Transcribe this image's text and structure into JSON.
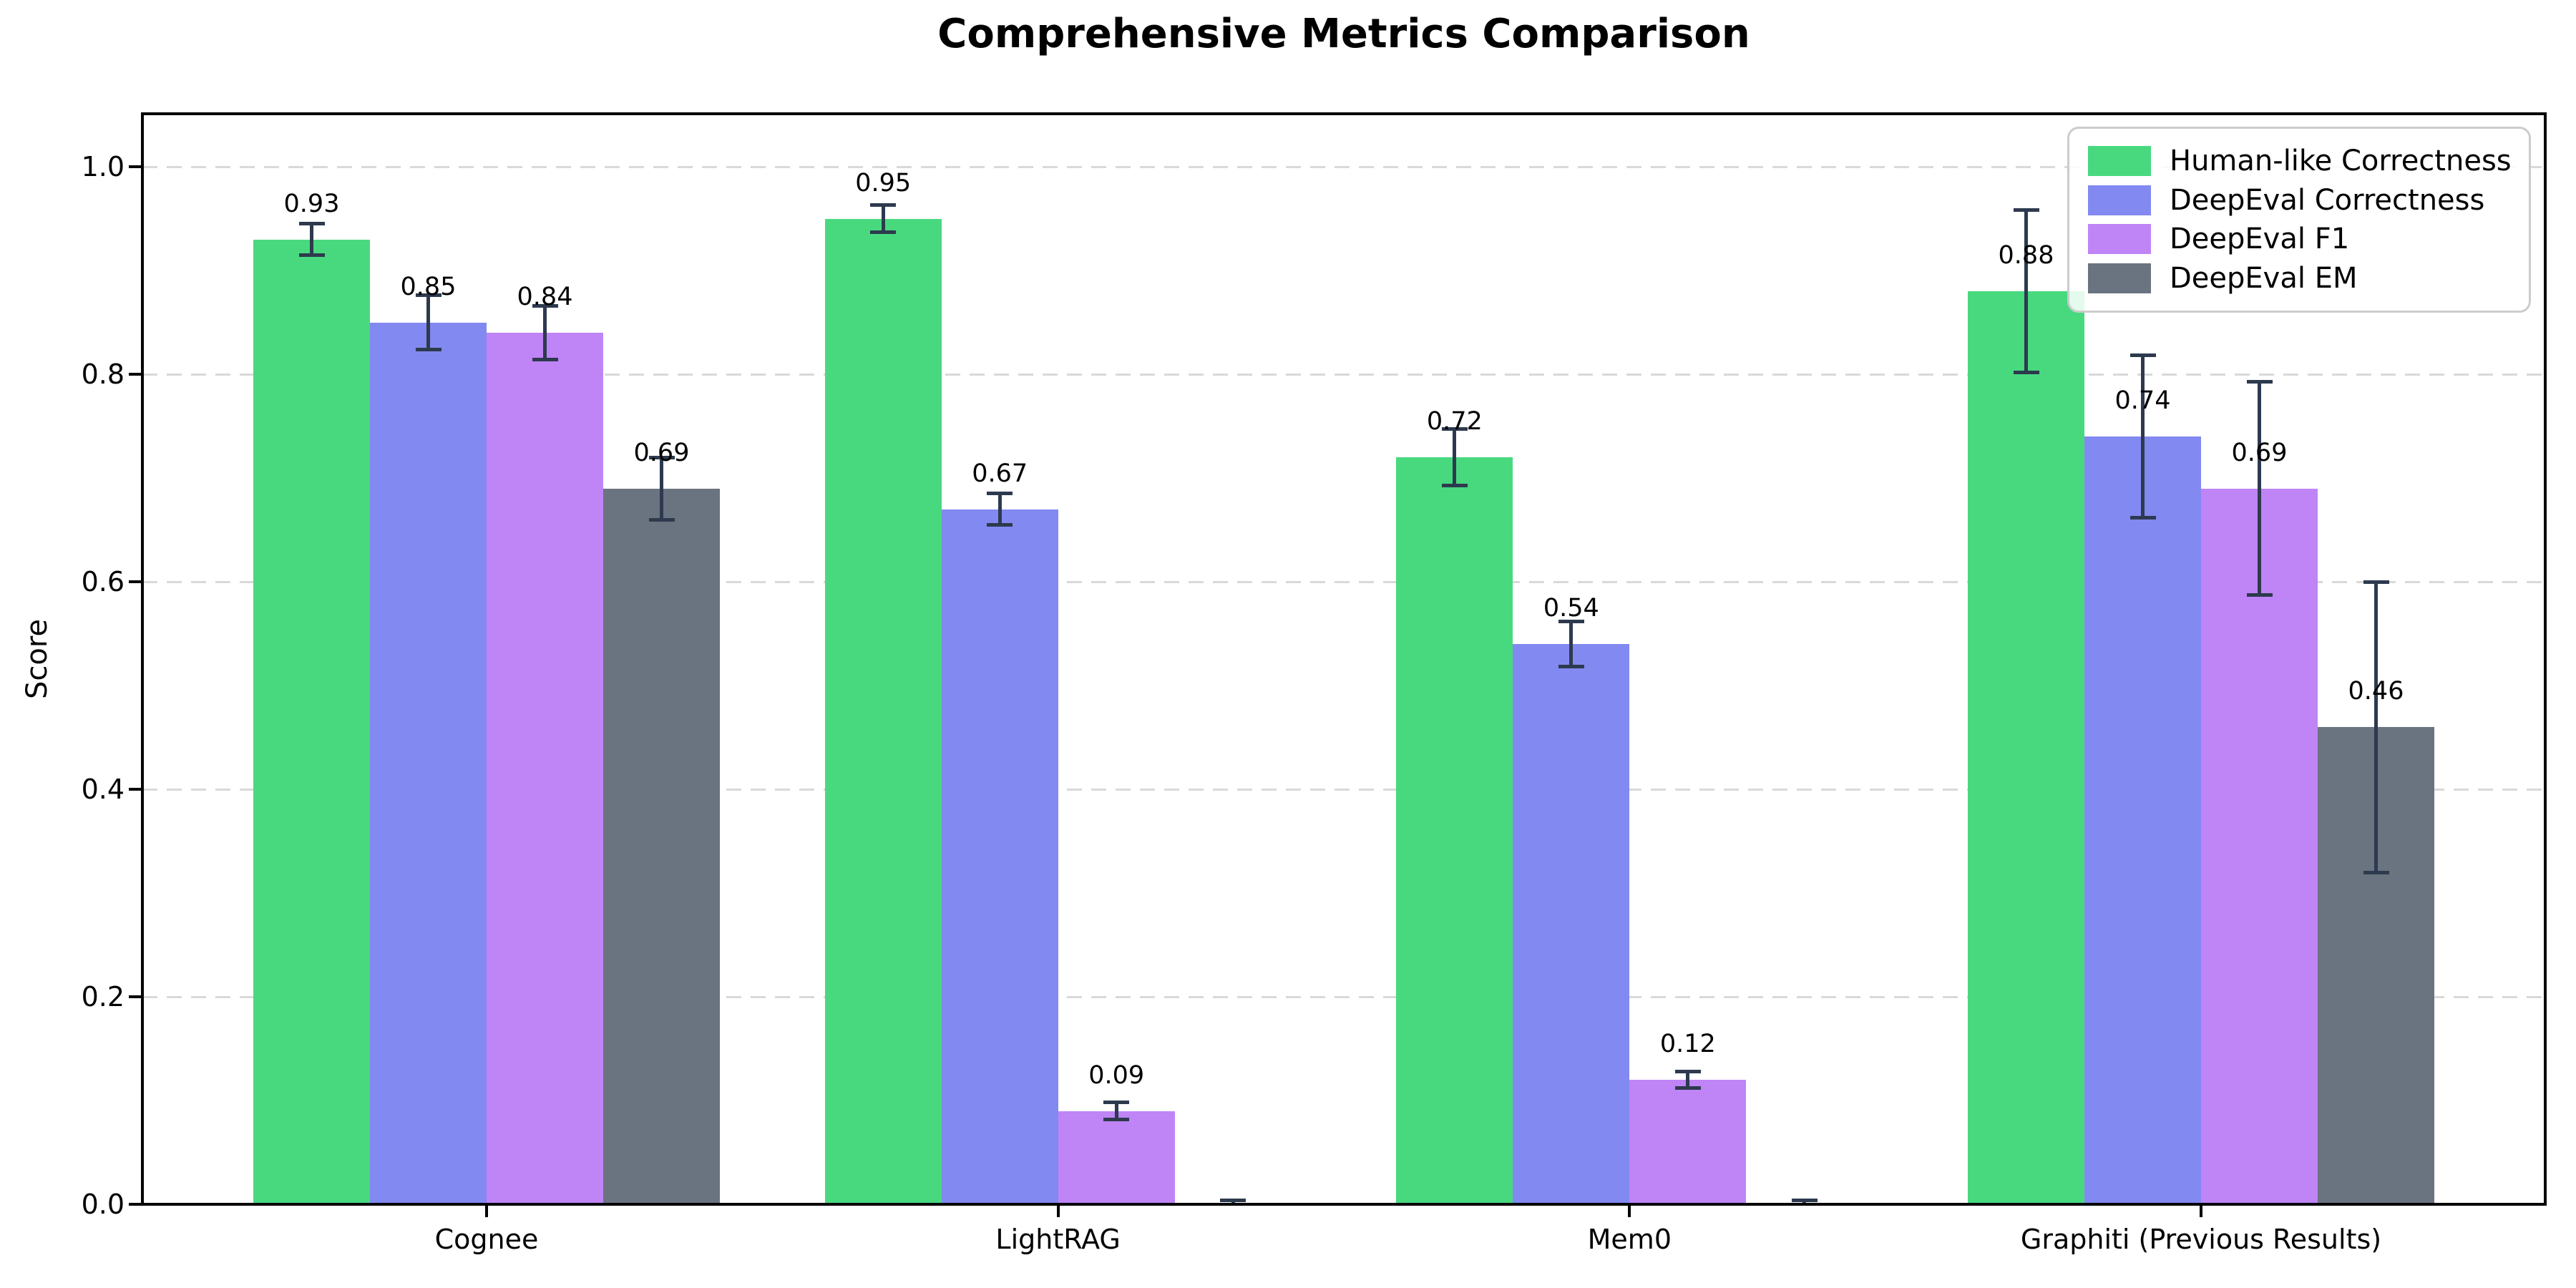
{
  "chart_data": {
    "type": "bar",
    "title": "Comprehensive Metrics Comparison",
    "ylabel": "Score",
    "xlabel": "",
    "ylim": [
      0,
      1.05
    ],
    "yticks": [
      0.0,
      0.2,
      0.4,
      0.6,
      0.8,
      1.0
    ],
    "ytick_labels": [
      "0.0",
      "0.2",
      "0.4",
      "0.6",
      "0.8",
      "1.0"
    ],
    "categories": [
      "Cognee",
      "LightRAG",
      "Mem0",
      "Graphiti (Previous Results)"
    ],
    "series": [
      {
        "name": "Human-like Correctness",
        "color": "#48d97f",
        "values": [
          0.93,
          0.95,
          0.72,
          0.88
        ],
        "errors": [
          0.015,
          0.013,
          0.027,
          0.078
        ],
        "labels": [
          "0.93",
          "0.95",
          "0.72",
          "0.88"
        ]
      },
      {
        "name": "DeepEval Correctness",
        "color": "#8289f0",
        "values": [
          0.85,
          0.67,
          0.54,
          0.74
        ],
        "errors": [
          0.026,
          0.015,
          0.022,
          0.078
        ],
        "labels": [
          "0.85",
          "0.67",
          "0.54",
          "0.74"
        ]
      },
      {
        "name": "DeepEval F1",
        "color": "#bf84f6",
        "values": [
          0.84,
          0.09,
          0.12,
          0.69
        ],
        "errors": [
          0.026,
          0.008,
          0.008,
          0.103
        ],
        "labels": [
          "0.84",
          "0.09",
          "0.12",
          "0.69"
        ]
      },
      {
        "name": "DeepEval EM",
        "color": "#6a7380",
        "values": [
          0.69,
          0.0,
          0.0,
          0.46
        ],
        "errors": [
          0.03,
          0.004,
          0.004,
          0.14
        ],
        "labels": [
          "0.69",
          null,
          null,
          "0.46"
        ]
      }
    ],
    "grid": "horizontal dashed",
    "legend_position": "upper right",
    "error_bar_color": "#2d3a4e"
  }
}
